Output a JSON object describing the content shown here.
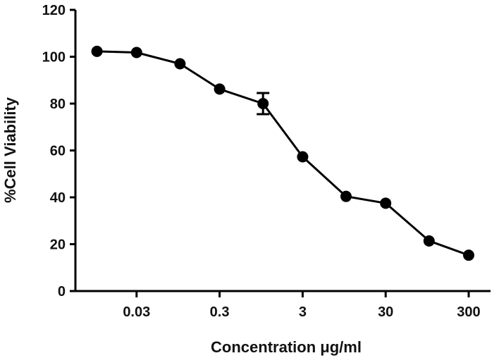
{
  "chart_data": {
    "type": "line",
    "title": "",
    "xlabel": "Concentration μg/ml",
    "ylabel": "%Cell Viability",
    "x_scale": "log",
    "x_tick_labels": [
      "0.03",
      "0.3",
      "3",
      "30",
      "300"
    ],
    "x_tick_values": [
      0.03,
      0.3,
      3,
      30,
      300
    ],
    "xlim": [
      0.0055,
      550
    ],
    "ylim": [
      0,
      120
    ],
    "y_ticks": [
      0,
      20,
      40,
      60,
      80,
      100,
      120
    ],
    "y_tick_labels": [
      "0",
      "20",
      "40",
      "60",
      "80",
      "100",
      "120"
    ],
    "grid": false,
    "series": [
      {
        "x": [
          0.01,
          0.03,
          0.1,
          0.3,
          1,
          3,
          10,
          30,
          100,
          300
        ],
        "y": [
          102.3,
          101.8,
          97,
          86.2,
          80,
          57.3,
          40.4,
          37.5,
          21.4,
          15.3
        ],
        "error": [
          0,
          0,
          0,
          0,
          4.5,
          0,
          0,
          0,
          0,
          0
        ]
      }
    ],
    "style": {
      "line_color": "#000000",
      "marker": "filled-circle"
    }
  }
}
